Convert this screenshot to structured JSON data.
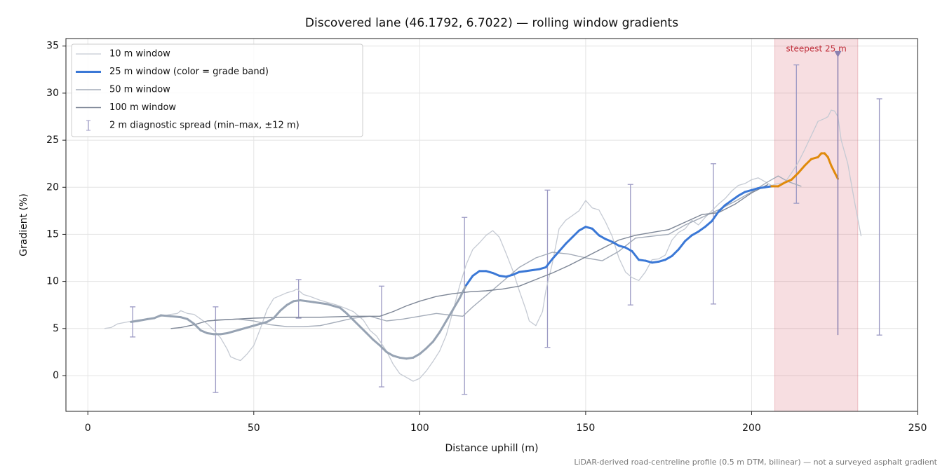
{
  "chart_data": {
    "type": "line",
    "title": "Discovered lane (46.1792, 6.7022) — rolling window gradients",
    "x_label": "Distance uphill (m)",
    "y_label": "Gradient (%)",
    "note": "LiDAR-derived road-centreline profile (0.5 m DTM, bilinear) — not a surveyed asphalt gradient",
    "xlim": [
      -6.6,
      250
    ],
    "ylim": [
      -3.8,
      35.8
    ],
    "xticks": [
      0,
      50,
      100,
      150,
      200,
      250
    ],
    "yticks": [
      0,
      5,
      10,
      15,
      20,
      25,
      30,
      35
    ],
    "grid": true,
    "legend": "upper left",
    "series": [
      {
        "name": "10 m window",
        "color": "#c5cad3",
        "width": 1.3,
        "x": [
          5,
          7,
          9,
          12,
          15,
          18,
          20,
          22,
          25,
          27,
          28,
          30,
          32,
          34,
          36,
          38,
          40,
          42,
          43,
          45,
          46,
          48,
          50,
          52,
          54,
          56,
          58,
          60,
          62,
          63,
          65,
          67,
          70,
          72,
          75,
          78,
          80,
          83,
          85,
          87,
          90,
          92,
          94,
          96,
          98,
          100,
          102,
          104,
          106,
          108,
          110,
          112,
          114,
          116,
          118,
          120,
          122,
          124,
          126,
          128,
          130,
          132,
          133,
          135,
          137,
          138,
          140,
          142,
          144,
          146,
          148,
          150,
          152,
          154,
          156,
          158,
          160,
          162,
          164,
          166,
          168,
          170,
          172,
          174,
          176,
          178,
          180,
          182,
          184,
          186,
          188,
          190,
          192,
          194,
          196,
          198,
          200,
          202,
          204,
          206,
          208,
          210,
          212,
          214,
          216,
          218,
          220,
          222,
          223,
          224,
          225,
          226,
          227,
          229,
          231,
          233
        ],
        "values": [
          5.0,
          5.1,
          5.5,
          5.7,
          5.9,
          6.0,
          6.1,
          6.3,
          6.5,
          6.6,
          6.9,
          6.6,
          6.5,
          6.0,
          5.5,
          4.8,
          4.0,
          2.8,
          2.0,
          1.7,
          1.6,
          2.3,
          3.2,
          5.0,
          7.0,
          8.2,
          8.5,
          8.8,
          9.0,
          9.2,
          8.6,
          8.4,
          8.0,
          7.8,
          7.5,
          7.1,
          6.8,
          5.9,
          4.8,
          4.2,
          2.6,
          1.2,
          0.2,
          -0.2,
          -0.6,
          -0.3,
          0.5,
          1.5,
          2.6,
          4.3,
          6.8,
          9.5,
          11.8,
          13.4,
          14.1,
          14.9,
          15.4,
          14.7,
          13.0,
          11.2,
          9.0,
          7.0,
          5.8,
          5.3,
          6.8,
          9.0,
          12.0,
          15.6,
          16.5,
          17.0,
          17.5,
          18.6,
          17.8,
          17.6,
          16.3,
          14.8,
          12.5,
          11.0,
          10.4,
          10.1,
          11.0,
          12.3,
          12.4,
          12.8,
          14.4,
          15.2,
          15.6,
          16.5,
          16.0,
          16.8,
          17.5,
          18.2,
          18.8,
          19.6,
          20.2,
          20.4,
          20.8,
          21.0,
          20.6,
          20.2,
          20.4,
          20.5,
          21.5,
          22.6,
          24.0,
          25.5,
          27.0,
          27.3,
          27.5,
          28.2,
          28.1,
          27.5,
          25.0,
          22.5,
          18.5,
          14.8
        ]
      },
      {
        "name": "25 m window (color = grade band)",
        "color": "#3b78d6",
        "width": 3,
        "x": [
          13,
          15,
          18,
          20,
          22,
          25,
          28,
          30,
          32,
          34,
          36,
          38,
          40,
          42,
          44,
          46,
          48,
          50,
          52,
          54,
          56,
          58,
          60,
          62,
          64,
          66,
          68,
          70,
          72,
          74,
          76,
          78,
          80,
          82,
          84,
          86,
          88,
          90,
          92,
          94,
          96,
          98,
          100,
          102,
          104,
          106,
          108,
          110,
          112,
          114,
          116,
          118,
          120,
          122,
          124,
          126,
          128,
          130,
          132,
          134,
          136,
          138,
          140,
          142,
          144,
          146,
          148,
          150,
          152,
          154,
          156,
          158,
          160,
          162,
          164,
          166,
          168,
          170,
          172,
          174,
          176,
          178,
          180,
          182,
          184,
          186,
          188,
          190,
          192,
          194,
          196,
          198,
          200,
          202,
          204,
          206,
          208,
          210,
          212,
          214,
          216,
          218,
          220,
          221,
          222,
          223,
          224,
          225,
          226
        ],
        "values": [
          5.7,
          5.8,
          6.0,
          6.1,
          6.4,
          6.3,
          6.2,
          6.0,
          5.5,
          4.8,
          4.5,
          4.4,
          4.4,
          4.5,
          4.7,
          4.9,
          5.1,
          5.3,
          5.5,
          5.7,
          6.1,
          6.9,
          7.5,
          7.9,
          8.0,
          7.9,
          7.8,
          7.7,
          7.6,
          7.4,
          7.2,
          6.6,
          5.9,
          5.2,
          4.5,
          3.8,
          3.2,
          2.5,
          2.1,
          1.9,
          1.8,
          1.9,
          2.3,
          2.9,
          3.6,
          4.6,
          5.8,
          7.0,
          8.2,
          9.6,
          10.6,
          11.1,
          11.1,
          10.9,
          10.6,
          10.5,
          10.7,
          11.0,
          11.1,
          11.2,
          11.3,
          11.5,
          12.4,
          13.2,
          14.0,
          14.7,
          15.4,
          15.8,
          15.6,
          14.9,
          14.5,
          14.2,
          13.8,
          13.6,
          13.2,
          12.3,
          12.2,
          12.0,
          12.1,
          12.3,
          12.7,
          13.4,
          14.3,
          14.9,
          15.3,
          15.8,
          16.4,
          17.4,
          18.1,
          18.6,
          19.1,
          19.5,
          19.7,
          19.9,
          20.0,
          20.1,
          20.1,
          20.5,
          20.8,
          21.5,
          22.3,
          23.0,
          23.2,
          23.6,
          23.6,
          23.2,
          22.3,
          21.6,
          20.9
        ],
        "colors": [
          "#97a3b3",
          "#97a3b3",
          "#97a3b3",
          "#97a3b3",
          "#97a3b3",
          "#97a3b3",
          "#97a3b3",
          "#97a3b3",
          "#97a3b3",
          "#97a3b3",
          "#97a3b3",
          "#97a3b3",
          "#97a3b3",
          "#97a3b3",
          "#97a3b3",
          "#97a3b3",
          "#97a3b3",
          "#97a3b3",
          "#97a3b3",
          "#97a3b3",
          "#97a3b3",
          "#97a3b3",
          "#97a3b3",
          "#97a3b3",
          "#97a3b3",
          "#97a3b3",
          "#97a3b3",
          "#97a3b3",
          "#97a3b3",
          "#97a3b3",
          "#97a3b3",
          "#97a3b3",
          "#97a3b3",
          "#97a3b3",
          "#97a3b3",
          "#97a3b3",
          "#97a3b3",
          "#97a3b3",
          "#97a3b3",
          "#97a3b3",
          "#97a3b3",
          "#97a3b3",
          "#97a3b3",
          "#97a3b3",
          "#97a3b3",
          "#97a3b3",
          "#97a3b3",
          "#97a3b3",
          "#97a3b3",
          "#97a3b3",
          "#3b78d6",
          "#3b78d6",
          "#3b78d6",
          "#3b78d6",
          "#3b78d6",
          "#3b78d6",
          "#3b78d6",
          "#3b78d6",
          "#3b78d6",
          "#3b78d6",
          "#3b78d6",
          "#3b78d6",
          "#3b78d6",
          "#3b78d6",
          "#3b78d6",
          "#3b78d6",
          "#3b78d6",
          "#3b78d6",
          "#3b78d6",
          "#3b78d6",
          "#3b78d6",
          "#3b78d6",
          "#3b78d6",
          "#3b78d6",
          "#3b78d6",
          "#3b78d6",
          "#3b78d6",
          "#3b78d6",
          "#3b78d6",
          "#3b78d6",
          "#3b78d6",
          "#3b78d6",
          "#3b78d6",
          "#3b78d6",
          "#3b78d6",
          "#3b78d6",
          "#3b78d6",
          "#3b78d6",
          "#3b78d6",
          "#3b78d6",
          "#3b78d6",
          "#3b78d6",
          "#3b78d6",
          "#3b78d6",
          "#3b78d6",
          "#3b78d6",
          "#e08a0b",
          "#e08a0b",
          "#e08a0b",
          "#e08a0b",
          "#e08a0b",
          "#e08a0b",
          "#e08a0b",
          "#e08a0b",
          "#e08a0b",
          "#e08a0b",
          "#e08a0b",
          "#e08a0b",
          "#e08a0b"
        ]
      },
      {
        "name": "50 m window",
        "color": "#a3abb8",
        "width": 1.4,
        "x": [
          38,
          45,
          50,
          55,
          60,
          65,
          70,
          75,
          80,
          85,
          90,
          95,
          100,
          105,
          110,
          113,
          116,
          120,
          125,
          130,
          135,
          140,
          145,
          150,
          155,
          160,
          165,
          170,
          175,
          180,
          185,
          190,
          195,
          200,
          205,
          208,
          211,
          215
        ],
        "values": [
          5.9,
          6.0,
          5.8,
          5.4,
          5.2,
          5.2,
          5.3,
          5.7,
          6.1,
          6.3,
          5.8,
          6.0,
          6.3,
          6.6,
          6.4,
          6.3,
          7.3,
          8.5,
          10.0,
          11.5,
          12.5,
          13.1,
          12.9,
          12.5,
          12.2,
          13.2,
          14.6,
          14.8,
          15.0,
          16.0,
          16.8,
          17.6,
          18.5,
          19.5,
          20.6,
          21.2,
          20.6,
          20.1
        ]
      },
      {
        "name": "100 m window",
        "color": "#7d8696",
        "width": 1.4,
        "x": [
          25,
          28,
          32,
          36,
          40,
          45,
          50,
          60,
          70,
          80,
          88,
          92,
          96,
          100,
          105,
          110,
          115,
          120,
          125,
          130,
          135,
          140,
          145,
          150,
          155,
          160,
          165,
          170,
          175,
          180,
          185,
          190,
          195,
          200,
          205
        ],
        "values": [
          5.0,
          5.1,
          5.4,
          5.8,
          5.9,
          6.0,
          6.1,
          6.2,
          6.2,
          6.3,
          6.3,
          6.8,
          7.4,
          7.9,
          8.4,
          8.7,
          8.9,
          9.0,
          9.2,
          9.5,
          10.2,
          10.9,
          11.7,
          12.6,
          13.5,
          14.4,
          14.9,
          15.2,
          15.5,
          16.3,
          17.1,
          17.3,
          18.2,
          19.4,
          20.3
        ]
      }
    ],
    "errorbars": {
      "name": "2 m diagnostic spread (min–max, ±12 m)",
      "color": "#9c9ac4",
      "x": [
        13.5,
        38.5,
        63.5,
        88.5,
        113.5,
        138.5,
        163.5,
        188.5,
        213.5,
        238.5
      ],
      "low": [
        4.1,
        -1.8,
        6.1,
        -1.2,
        -2.0,
        3.0,
        7.5,
        7.6,
        18.3,
        4.3
      ],
      "high": [
        7.3,
        7.3,
        10.2,
        9.5,
        16.8,
        19.7,
        20.3,
        22.5,
        33.0,
        29.4
      ]
    },
    "steepest": {
      "label": "steepest 25 m",
      "x_range": [
        207,
        232
      ],
      "x": 226,
      "value": 34.1,
      "low": 4.3,
      "color": "#c0303c",
      "fill": "rgba(214,90,105,0.2)",
      "marker_color": "#8a80b0"
    }
  }
}
